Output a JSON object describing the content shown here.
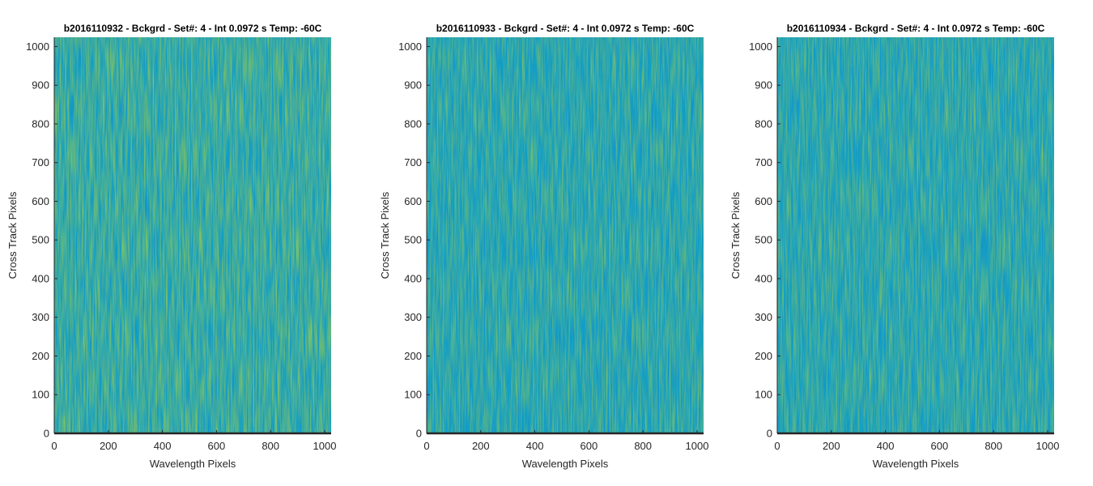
{
  "chart_data": [
    {
      "type": "heatmap",
      "title": "b2016110932 - Bckgrd - Set#: 4 - Int 0.0972 s Temp: -60C",
      "xlabel": "Wavelength Pixels",
      "ylabel": "Cross Track Pixels",
      "xlim": [
        0,
        1024
      ],
      "ylim": [
        0,
        1024
      ],
      "xticks": [
        0,
        200,
        400,
        600,
        800,
        1000
      ],
      "yticks": [
        0,
        100,
        200,
        300,
        400,
        500,
        600,
        700,
        800,
        900,
        1000
      ],
      "grid": false,
      "colors": {
        "low": "#0d8bd0",
        "mid": "#19a6c2",
        "high": "#86c45e"
      }
    },
    {
      "type": "heatmap",
      "title": "b2016110933 - Bckgrd - Set#: 4 - Int 0.0972 s Temp: -60C",
      "xlabel": "Wavelength Pixels",
      "ylabel": "Cross Track Pixels",
      "xlim": [
        0,
        1024
      ],
      "ylim": [
        0,
        1024
      ],
      "xticks": [
        0,
        200,
        400,
        600,
        800,
        1000
      ],
      "yticks": [
        0,
        100,
        200,
        300,
        400,
        500,
        600,
        700,
        800,
        900,
        1000
      ],
      "grid": false,
      "colors": {
        "low": "#0d8bd0",
        "mid": "#19a6c2",
        "high": "#86c45e"
      }
    },
    {
      "type": "heatmap",
      "title": "b2016110934 - Bckgrd - Set#: 4 - Int 0.0972 s Temp: -60C",
      "xlabel": "Wavelength Pixels",
      "ylabel": "Cross Track Pixels",
      "xlim": [
        0,
        1024
      ],
      "ylim": [
        0,
        1024
      ],
      "xticks": [
        0,
        200,
        400,
        600,
        800,
        1000
      ],
      "yticks": [
        0,
        100,
        200,
        300,
        400,
        500,
        600,
        700,
        800,
        900,
        1000
      ],
      "grid": false,
      "colors": {
        "low": "#0d8bd0",
        "mid": "#19a6c2",
        "high": "#86c45e"
      }
    }
  ]
}
